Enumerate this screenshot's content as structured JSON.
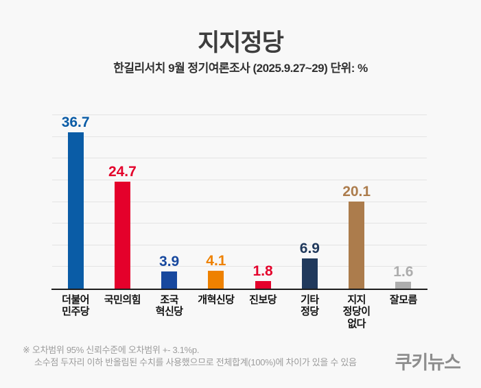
{
  "header": {
    "title": "지지정당",
    "subtitle": "한길리서치 9월 정기여론조사 (2025.9.27~29) 단위: %"
  },
  "chart_data": {
    "type": "bar",
    "title": "지지정당",
    "subtitle": "한길리서치 9월 정기여론조사 (2025.9.27~29)",
    "unit": "%",
    "categories": [
      "더불어\n민주당",
      "국민의힘",
      "조국\n혁신당",
      "개혁신당",
      "진보당",
      "기타\n정당",
      "지지\n정당이\n없다",
      "잘모름"
    ],
    "values": [
      36.7,
      24.7,
      3.9,
      4.1,
      1.8,
      6.9,
      20.1,
      1.6
    ],
    "bar_colors": [
      "#0a5ca6",
      "#e4012b",
      "#17489e",
      "#ee8100",
      "#e4012b",
      "#20395c",
      "#ac7c4c",
      "#adadad"
    ],
    "xlabel": "",
    "ylabel": "",
    "ylim": [
      0,
      40
    ],
    "gridline_step": 5,
    "grid": true,
    "y_axis_labels_visible": false,
    "legend": "none",
    "value_labels": "above bars, colored same as bar"
  },
  "footer": {
    "note_line1": "※ 오차범위 95% 신뢰수준에 오차범위 +- 3.1%p.",
    "note_line2": "소수점 두자리 이하 반올림된 수치를 사용했으므로 전체합계(100%)에 차이가 있을 수 있음",
    "logo": "쿠키뉴스"
  }
}
